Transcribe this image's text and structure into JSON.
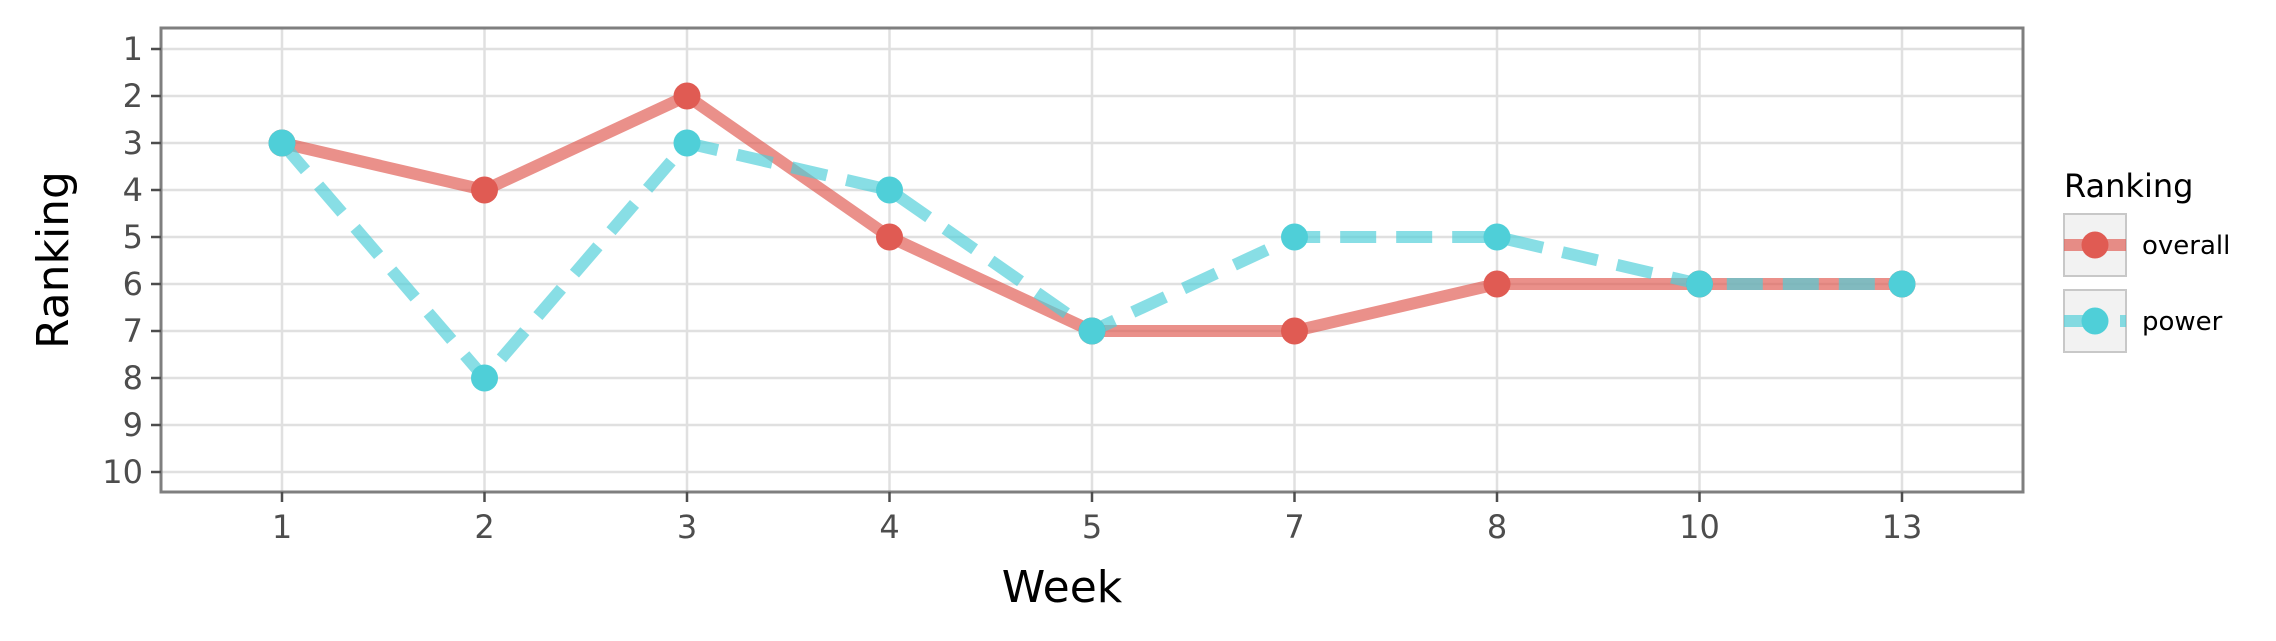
{
  "chart_data": {
    "type": "line",
    "title": "",
    "xlabel": "Week",
    "ylabel": "Ranking",
    "categories": [
      "1",
      "2",
      "3",
      "4",
      "5",
      "7",
      "8",
      "10",
      "13"
    ],
    "y_ticks": [
      1,
      2,
      3,
      4,
      5,
      6,
      7,
      8,
      9,
      10
    ],
    "ylim": [
      1,
      10
    ],
    "y_reversed": true,
    "grid": true,
    "legend": {
      "title": "Ranking",
      "placement": "right"
    },
    "series": [
      {
        "name": "overall",
        "color": "#e05b53",
        "line_style": "solid",
        "values": [
          3,
          4,
          2,
          5,
          7,
          7,
          6,
          6,
          6
        ]
      },
      {
        "name": "power",
        "color": "#4fcfd8",
        "line_style": "dashed",
        "values": [
          3,
          8,
          3,
          4,
          7,
          5,
          5,
          6,
          6
        ]
      }
    ]
  }
}
